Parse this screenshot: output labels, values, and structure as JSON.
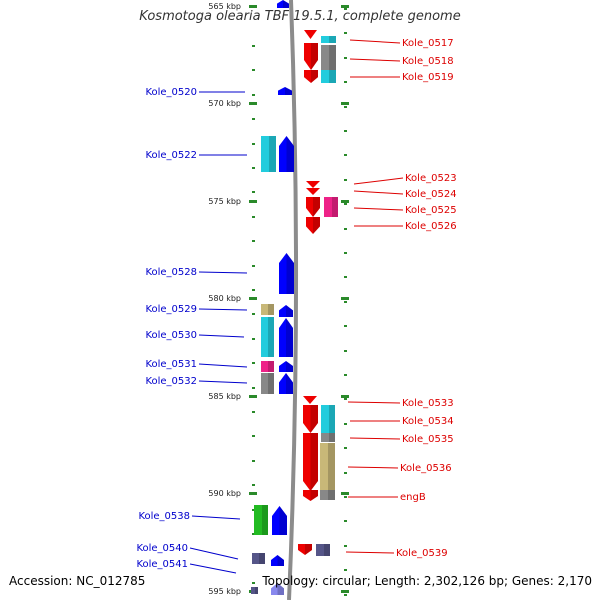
{
  "title": "Kosmotoga olearia TBF 19.5.1, complete genome",
  "accession": "Accession: NC_012785",
  "topology": "Topology: circular; Length: 2,302,126 bp; Genes: 2,170",
  "colors": {
    "forward_label": "#0000cc",
    "reverse_label": "#dd0000",
    "tick": "#2a8a2a",
    "backbone": "#8c8c8c",
    "blue": "#0000ff",
    "red": "#ee0000",
    "cyan": "#22ccdd",
    "gray": "#888888",
    "magenta": "#ee2288",
    "olive": "#c8b878",
    "green": "#22bb22",
    "slate": "#555588"
  },
  "axis": {
    "unit": "kbp",
    "ticks": [
      {
        "pos": 565,
        "label": "565 kbp"
      },
      {
        "pos": 570,
        "label": "570 kbp"
      },
      {
        "pos": 575,
        "label": "575 kbp"
      },
      {
        "pos": 580,
        "label": "580 kbp"
      },
      {
        "pos": 585,
        "label": "585 kbp"
      },
      {
        "pos": 590,
        "label": "590 kbp"
      },
      {
        "pos": 595,
        "label": "595 kbp"
      }
    ]
  },
  "forward_labels": [
    "Kole_0520",
    "Kole_0522",
    "Kole_0528",
    "Kole_0529",
    "Kole_0530",
    "Kole_0531",
    "Kole_0532",
    "Kole_0538",
    "Kole_0540",
    "Kole_0541"
  ],
  "reverse_labels": [
    "Kole_0517",
    "Kole_0518",
    "Kole_0519",
    "Kole_0523",
    "Kole_0524",
    "Kole_0525",
    "Kole_0526",
    "Kole_0533",
    "Kole_0534",
    "Kole_0535",
    "Kole_0536",
    "engB",
    "Kole_0539"
  ]
}
